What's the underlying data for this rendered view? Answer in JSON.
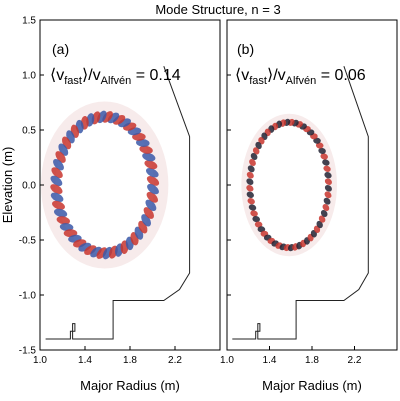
{
  "figure_title": "Mode Structure, n = 3",
  "chart_data": [
    {
      "type": "contour",
      "panel_label": "(a)",
      "annotation": {
        "prefix": "⟨v",
        "sub1": "fast",
        "mid": "⟩/v",
        "sub2": "Alfvén",
        "suffix": " = 0.14"
      },
      "xlabel": "Major Radius (m)",
      "ylabel": "Elevation (m)",
      "xlim": [
        1.0,
        2.6
      ],
      "ylim": [
        -1.5,
        1.5
      ],
      "xticks": [
        "1.0",
        "1.4",
        "1.8",
        "2.2"
      ],
      "yticks": [
        "1.5",
        "1.0",
        "0.5",
        "0.0",
        "-0.5",
        "-1.0",
        "-1.5"
      ],
      "mode": {
        "center_R": 1.575,
        "center_Z": 0.0,
        "minor_radius_R": 0.43,
        "minor_radius_Z": 0.62,
        "toroidal_n": 3,
        "poloidal_lobes": 52,
        "positive_color": "#c8352e",
        "negative_color": "#3a58a8"
      }
    },
    {
      "type": "contour",
      "panel_label": "(b)",
      "annotation": {
        "prefix": "⟨v",
        "sub1": "fast",
        "mid": "⟩/v",
        "sub2": "Alfvén",
        "suffix": " = 0.06"
      },
      "xlabel": "Major Radius (m)",
      "xlim": [
        1.0,
        2.6
      ],
      "ylim": [
        -1.5,
        1.5
      ],
      "xticks": [
        "1.0",
        "1.4",
        "1.8",
        "2.2"
      ],
      "mode": {
        "center_R": 1.585,
        "center_Z": 0.0,
        "minor_radius_R": 0.37,
        "minor_radius_Z": 0.57,
        "toroidal_n": 3,
        "poloidal_lobes": 60,
        "positive_color": "#c8352e",
        "negative_color": "#222233"
      }
    }
  ],
  "vessel_wall": {
    "R": [
      2.1,
      2.33,
      2.33,
      2.24,
      2.1,
      1.65,
      1.65,
      1.29,
      1.29,
      1.31,
      1.31,
      1.27,
      1.27,
      1.05
    ],
    "Z": [
      1.08,
      0.44,
      -0.8,
      -0.95,
      -1.05,
      -1.05,
      -1.4,
      -1.4,
      -1.26,
      -1.26,
      -1.33,
      -1.33,
      -1.4,
      -1.4
    ]
  }
}
